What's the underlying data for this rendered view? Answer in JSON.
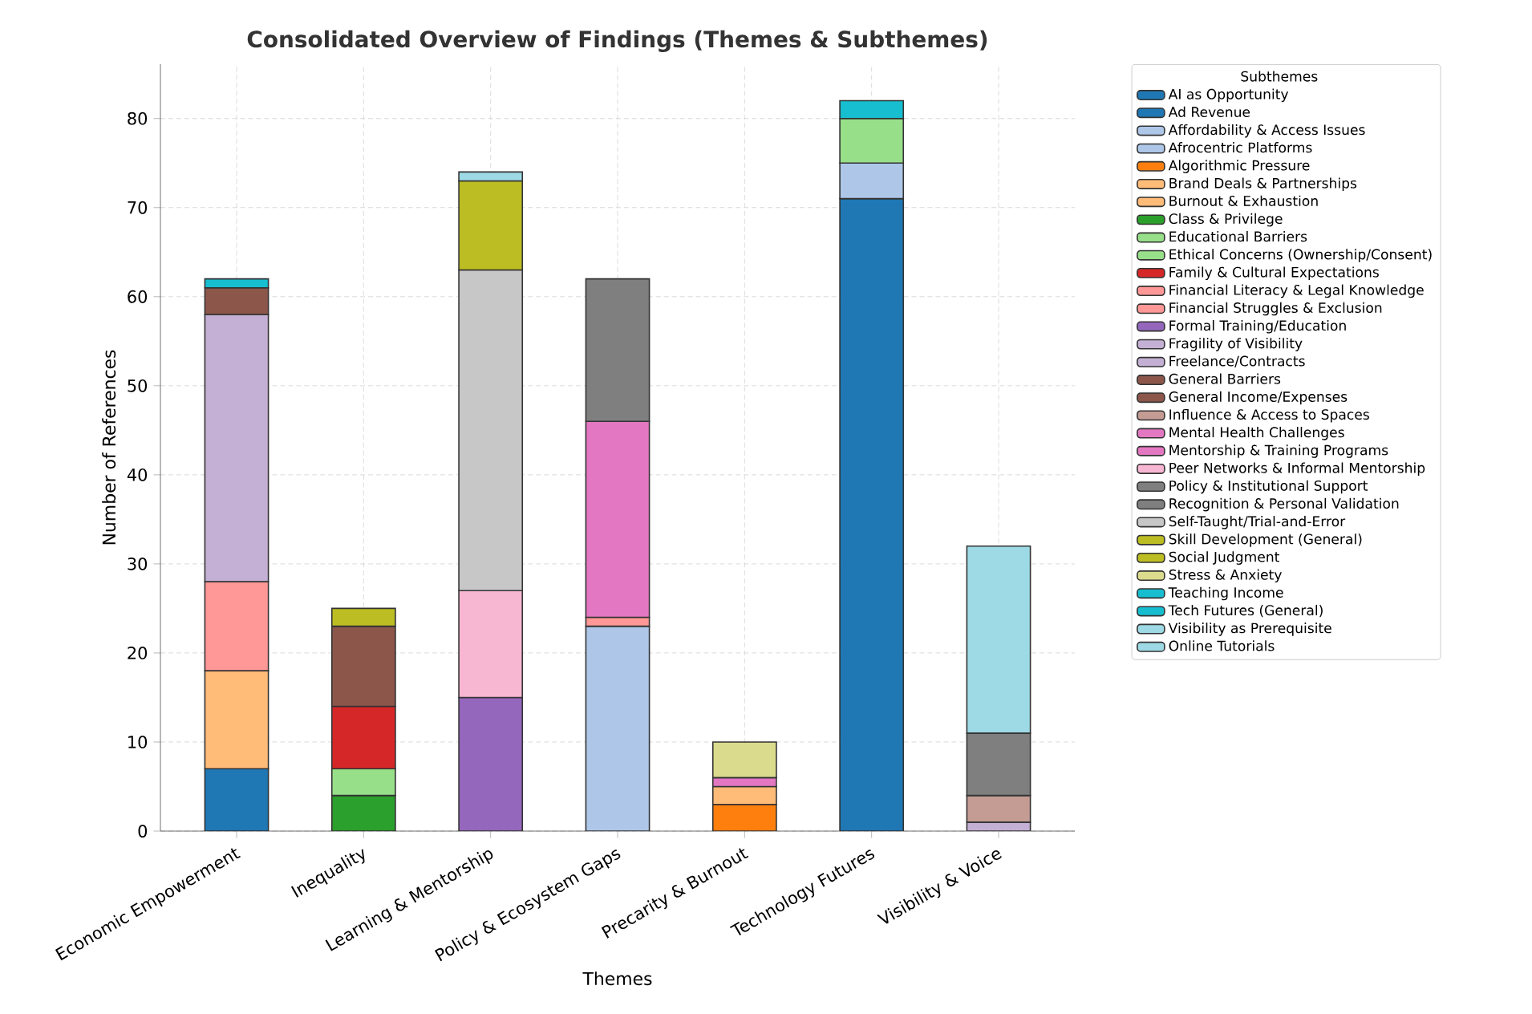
{
  "chart_data": {
    "type": "bar",
    "stacked": true,
    "title": "Consolidated Overview of Findings (Themes & Subthemes)",
    "xlabel": "Themes",
    "ylabel": "Number of References",
    "legend_title": "Subthemes",
    "legend": "right",
    "grid": true,
    "categories": [
      "Economic Empowerment",
      "Inequality",
      "Learning & Mentorship",
      "Policy & Ecosystem Gaps",
      "Precarity & Burnout",
      "Technology Futures",
      "Visibility & Voice"
    ],
    "ylim": [
      0,
      86.1
    ],
    "yticks": [
      0,
      10,
      20,
      30,
      40,
      50,
      60,
      70,
      80
    ],
    "series": [
      {
        "name": "AI as Opportunity",
        "color": "#1f77b4",
        "values": [
          null,
          null,
          null,
          null,
          null,
          71,
          null
        ]
      },
      {
        "name": "Ad Revenue",
        "color": "#1f77b4",
        "values": [
          7,
          null,
          null,
          null,
          null,
          null,
          null
        ]
      },
      {
        "name": "Affordability & Access Issues",
        "color": "#aec7e8",
        "values": [
          null,
          null,
          null,
          null,
          null,
          4,
          null
        ]
      },
      {
        "name": "Afrocentric Platforms",
        "color": "#aec7e8",
        "values": [
          null,
          null,
          null,
          23,
          null,
          null,
          null
        ]
      },
      {
        "name": "Algorithmic Pressure",
        "color": "#ff7f0e",
        "values": [
          null,
          null,
          null,
          null,
          3,
          null,
          null
        ]
      },
      {
        "name": "Brand Deals & Partnerships",
        "color": "#ffbb78",
        "values": [
          11,
          null,
          null,
          null,
          null,
          null,
          null
        ]
      },
      {
        "name": "Burnout & Exhaustion",
        "color": "#ffbb78",
        "values": [
          null,
          null,
          null,
          null,
          2,
          null,
          null
        ]
      },
      {
        "name": "Class & Privilege",
        "color": "#2ca02c",
        "values": [
          null,
          4,
          null,
          null,
          null,
          null,
          null
        ]
      },
      {
        "name": "Educational Barriers",
        "color": "#98df8a",
        "values": [
          null,
          3,
          null,
          null,
          null,
          null,
          null
        ]
      },
      {
        "name": "Ethical Concerns (Ownership/Consent)",
        "color": "#98df8a",
        "values": [
          null,
          null,
          null,
          null,
          null,
          5,
          null
        ]
      },
      {
        "name": "Family & Cultural Expectations",
        "color": "#d62728",
        "values": [
          null,
          7,
          null,
          null,
          null,
          null,
          null
        ]
      },
      {
        "name": "Financial Literacy & Legal Knowledge",
        "color": "#ff9896",
        "values": [
          10,
          null,
          null,
          null,
          null,
          null,
          null
        ]
      },
      {
        "name": "Financial Struggles & Exclusion",
        "color": "#ff9896",
        "values": [
          null,
          null,
          null,
          1,
          null,
          null,
          null
        ]
      },
      {
        "name": "Formal Training/Education",
        "color": "#9467bd",
        "values": [
          null,
          null,
          15,
          null,
          null,
          null,
          null
        ]
      },
      {
        "name": "Fragility of Visibility",
        "color": "#c5b0d5",
        "values": [
          null,
          null,
          null,
          null,
          null,
          null,
          1
        ]
      },
      {
        "name": "Freelance/Contracts",
        "color": "#c5b0d5",
        "values": [
          30,
          null,
          null,
          null,
          null,
          null,
          null
        ]
      },
      {
        "name": "General Barriers",
        "color": "#8c564b",
        "values": [
          null,
          9,
          null,
          null,
          null,
          null,
          null
        ]
      },
      {
        "name": "General Income/Expenses",
        "color": "#8c564b",
        "values": [
          3,
          null,
          null,
          null,
          null,
          null,
          null
        ]
      },
      {
        "name": "Influence & Access to Spaces",
        "color": "#c49c94",
        "values": [
          null,
          null,
          null,
          null,
          null,
          null,
          3
        ]
      },
      {
        "name": "Mental Health Challenges",
        "color": "#e377c2",
        "values": [
          null,
          null,
          null,
          null,
          1,
          null,
          null
        ]
      },
      {
        "name": "Mentorship & Training Programs",
        "color": "#e377c2",
        "values": [
          null,
          null,
          null,
          22,
          null,
          null,
          null
        ]
      },
      {
        "name": "Peer Networks & Informal Mentorship",
        "color": "#f7b6d2",
        "values": [
          null,
          null,
          12,
          null,
          null,
          null,
          null
        ]
      },
      {
        "name": "Policy & Institutional Support",
        "color": "#7f7f7f",
        "values": [
          null,
          null,
          null,
          16,
          null,
          null,
          null
        ]
      },
      {
        "name": "Recognition & Personal Validation",
        "color": "#7f7f7f",
        "values": [
          null,
          null,
          null,
          null,
          null,
          null,
          7
        ]
      },
      {
        "name": "Self-Taught/Trial-and-Error",
        "color": "#c7c7c7",
        "values": [
          null,
          null,
          36,
          null,
          null,
          null,
          null
        ]
      },
      {
        "name": "Skill Development (General)",
        "color": "#bcbd22",
        "values": [
          null,
          null,
          10,
          null,
          null,
          null,
          null
        ]
      },
      {
        "name": "Social Judgment",
        "color": "#bcbd22",
        "values": [
          null,
          2,
          null,
          null,
          null,
          null,
          null
        ]
      },
      {
        "name": "Stress & Anxiety",
        "color": "#dbdb8d",
        "values": [
          null,
          null,
          null,
          null,
          4,
          null,
          null
        ]
      },
      {
        "name": "Teaching Income",
        "color": "#17becf",
        "values": [
          1,
          null,
          null,
          null,
          null,
          null,
          null
        ]
      },
      {
        "name": "Tech Futures (General)",
        "color": "#17becf",
        "values": [
          null,
          null,
          null,
          null,
          null,
          2,
          null
        ]
      },
      {
        "name": "Visibility as Prerequisite",
        "color": "#9edae5",
        "values": [
          null,
          null,
          null,
          null,
          null,
          null,
          21
        ]
      },
      {
        "name": "Online Tutorials",
        "color": "#9edae5",
        "values": [
          null,
          null,
          1,
          null,
          null,
          null,
          null
        ]
      }
    ]
  }
}
